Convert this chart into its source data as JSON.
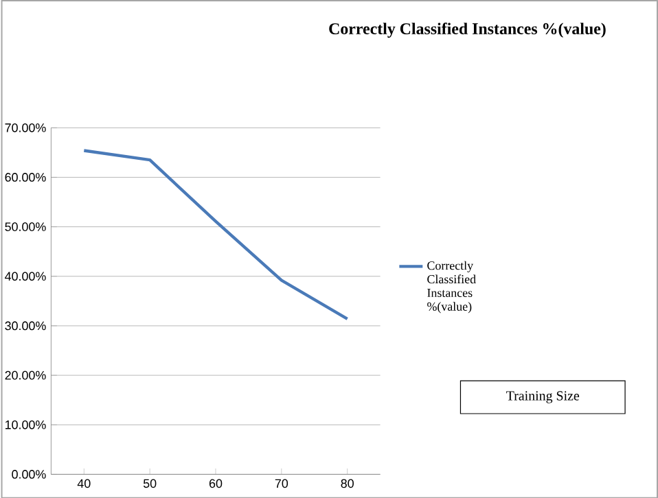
{
  "chart_data": {
    "type": "line",
    "title": "Correctly Classified Instances %(value)",
    "categories": [
      "40",
      "50",
      "60",
      "70",
      "80"
    ],
    "series": [
      {
        "name": "Correctly Classified Instances %(value)",
        "color": "#4a7ab8",
        "values": [
          65.4,
          63.5,
          51.1,
          39.2,
          31.4
        ]
      }
    ],
    "ylim": [
      0,
      70
    ],
    "yticks": [
      {
        "value": 0,
        "label": "0.00%"
      },
      {
        "value": 10,
        "label": "10.00%"
      },
      {
        "value": 20,
        "label": "20.00%"
      },
      {
        "value": 30,
        "label": "30.00%"
      },
      {
        "value": 40,
        "label": "40.00%"
      },
      {
        "value": 50,
        "label": "50.00%"
      },
      {
        "value": 60,
        "label": "60.00%"
      },
      {
        "value": 70,
        "label": "70.00%"
      }
    ],
    "grid": "y",
    "legend": "right",
    "marker": "none",
    "line_style": "solid",
    "annotations": [
      "Training Size"
    ]
  }
}
